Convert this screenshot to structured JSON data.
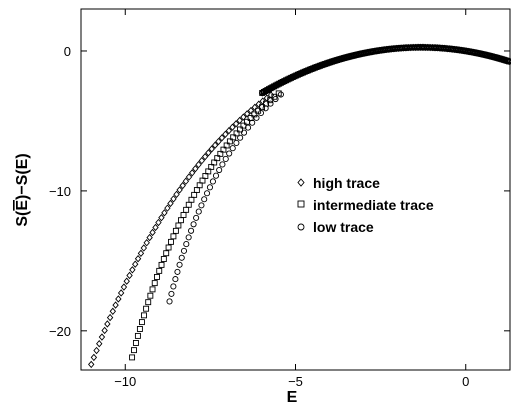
{
  "chart_data": {
    "type": "scatter",
    "title": "",
    "xlabel": "E",
    "ylabel_parts": [
      "S(",
      "E",
      ")−S(E)"
    ],
    "xlim": [
      -11.3,
      1.3
    ],
    "ylim": [
      -22.8,
      3.0
    ],
    "xticks": [
      -10,
      -5,
      0
    ],
    "xtick_labels": [
      "−10",
      "−5",
      "0"
    ],
    "yticks": [
      0,
      -10,
      -20
    ],
    "ytick_labels": [
      "0",
      "−10",
      "−20"
    ],
    "grid": false,
    "legend_position": "center-right",
    "series": [
      {
        "name": "high trace",
        "marker": "diamond",
        "x_start": -11.0,
        "y_start": -22.4
      },
      {
        "name": "intermediate trace",
        "marker": "square",
        "x_start": -9.8,
        "y_start": -21.9
      },
      {
        "name": "low trace",
        "marker": "circle",
        "x_start": -8.7,
        "y_start": -17.9
      }
    ]
  }
}
